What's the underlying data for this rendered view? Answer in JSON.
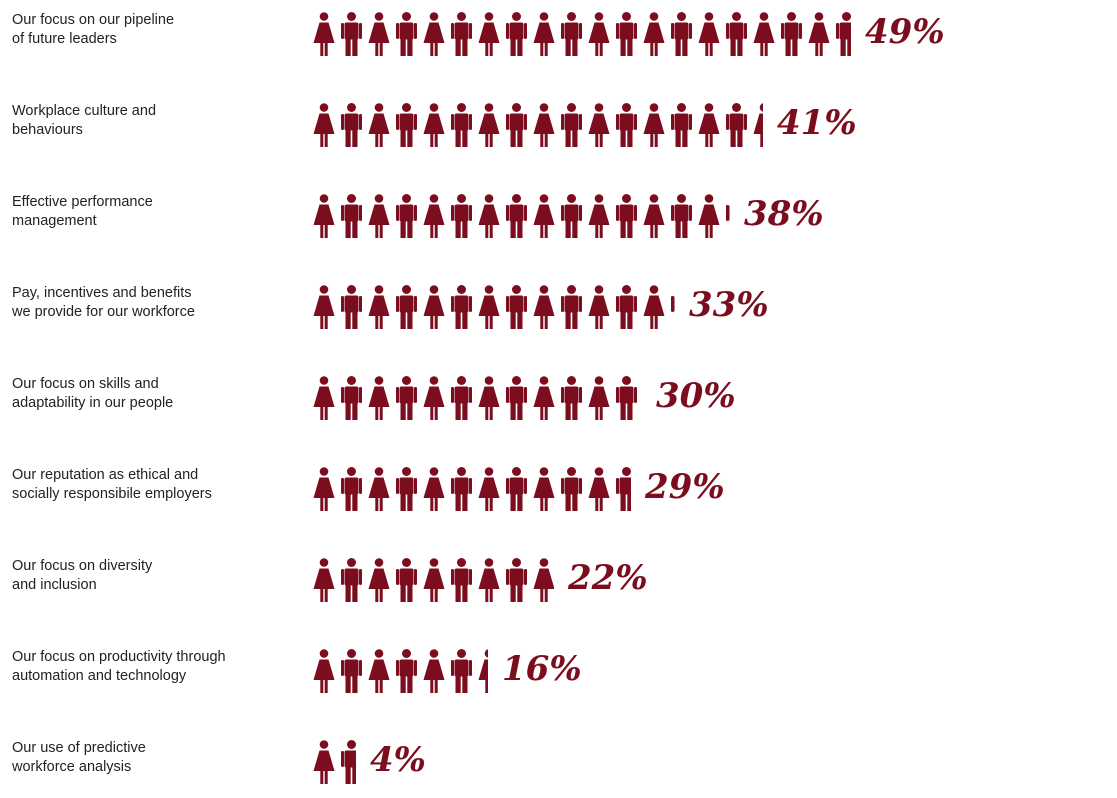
{
  "chart_data": {
    "type": "bar",
    "orientation": "horizontal",
    "encoding": "pictogram",
    "categories": [
      "Our focus on our pipeline\nof future leaders",
      "Workplace culture and\nbehaviours",
      "Effective performance\nmanagement",
      "Pay, incentives and benefits\nwe provide for our workforce",
      "Our focus on skills and\nadaptability in our people",
      "Our reputation as ethical and\nsocially responsibile employers",
      "Our focus on diversity\nand inclusion",
      "Our focus on productivity through\nautomation and technology",
      "Our use of predictive\nworkforce analysis"
    ],
    "values": [
      49,
      41,
      38,
      33,
      30,
      29,
      22,
      16,
      4
    ],
    "value_labels": [
      "49%",
      "41%",
      "38%",
      "33%",
      "30%",
      "29%",
      "22%",
      "16%",
      "4%"
    ],
    "unit": "%",
    "title": "",
    "xlabel": "",
    "ylabel": "",
    "legend": "none",
    "grid": false,
    "colors": {
      "icon": "#7b0d1e",
      "value_text": "#7b0d1e",
      "label_text": "#222222",
      "background": "#ffffff"
    },
    "icon_sequence": [
      "female-figure-icon",
      "male-figure-icon"
    ]
  }
}
